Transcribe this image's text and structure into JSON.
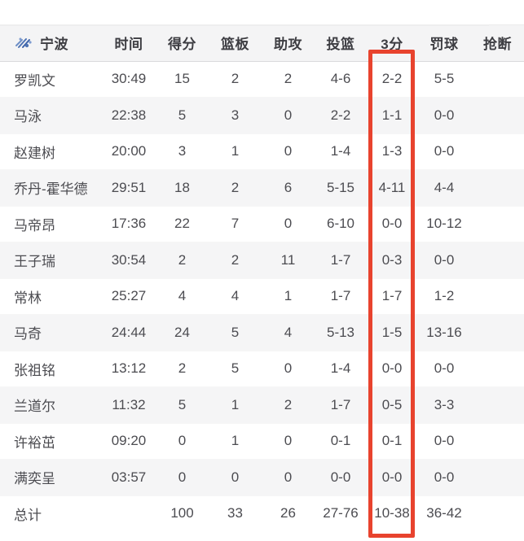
{
  "table": {
    "team": {
      "name": "宁波",
      "logo_icon": "team-logo-icon"
    },
    "columns": [
      "时间",
      "得分",
      "篮板",
      "助攻",
      "投篮",
      "3分",
      "罚球",
      "抢断"
    ],
    "highlighted_column": "3分",
    "rows": [
      {
        "player": "罗凯文",
        "time": "30:49",
        "points": "15",
        "rebounds": "2",
        "assists": "2",
        "fg": "4-6",
        "three": "2-2",
        "ft": "5-5"
      },
      {
        "player": "马泳",
        "time": "22:38",
        "points": "5",
        "rebounds": "3",
        "assists": "0",
        "fg": "2-2",
        "three": "1-1",
        "ft": "0-0"
      },
      {
        "player": "赵建树",
        "time": "20:00",
        "points": "3",
        "rebounds": "1",
        "assists": "0",
        "fg": "1-4",
        "three": "1-3",
        "ft": "0-0"
      },
      {
        "player": "乔丹-霍华德",
        "time": "29:51",
        "points": "18",
        "rebounds": "2",
        "assists": "6",
        "fg": "5-15",
        "three": "4-11",
        "ft": "4-4"
      },
      {
        "player": "马帝昂",
        "time": "17:36",
        "points": "22",
        "rebounds": "7",
        "assists": "0",
        "fg": "6-10",
        "three": "0-0",
        "ft": "10-12"
      },
      {
        "player": "王子瑞",
        "time": "30:54",
        "points": "2",
        "rebounds": "2",
        "assists": "11",
        "fg": "1-7",
        "three": "0-3",
        "ft": "0-0"
      },
      {
        "player": "常林",
        "time": "25:27",
        "points": "4",
        "rebounds": "4",
        "assists": "1",
        "fg": "1-7",
        "three": "1-7",
        "ft": "1-2"
      },
      {
        "player": "马奇",
        "time": "24:44",
        "points": "24",
        "rebounds": "5",
        "assists": "4",
        "fg": "5-13",
        "three": "1-5",
        "ft": "13-16"
      },
      {
        "player": "张祖铭",
        "time": "13:12",
        "points": "2",
        "rebounds": "5",
        "assists": "0",
        "fg": "1-4",
        "three": "0-0",
        "ft": "0-0"
      },
      {
        "player": "兰道尔",
        "time": "11:32",
        "points": "5",
        "rebounds": "1",
        "assists": "2",
        "fg": "1-7",
        "three": "0-5",
        "ft": "3-3"
      },
      {
        "player": "许裕茁",
        "time": "09:20",
        "points": "0",
        "rebounds": "1",
        "assists": "0",
        "fg": "0-1",
        "three": "0-1",
        "ft": "0-0"
      },
      {
        "player": "满奕呈",
        "time": "03:57",
        "points": "0",
        "rebounds": "0",
        "assists": "0",
        "fg": "0-0",
        "three": "0-0",
        "ft": "0-0"
      }
    ],
    "totals": {
      "label": "总计",
      "points": "100",
      "rebounds": "33",
      "assists": "26",
      "fg": "27-76",
      "three": "10-38",
      "ft": "36-42"
    }
  },
  "colors": {
    "highlight_box": "#e8432e",
    "header_bg": "#f4f4f5",
    "row_alt_bg": "#f5f5f6",
    "text": "#4c4c51",
    "logo_blue": "#4f74b4"
  }
}
